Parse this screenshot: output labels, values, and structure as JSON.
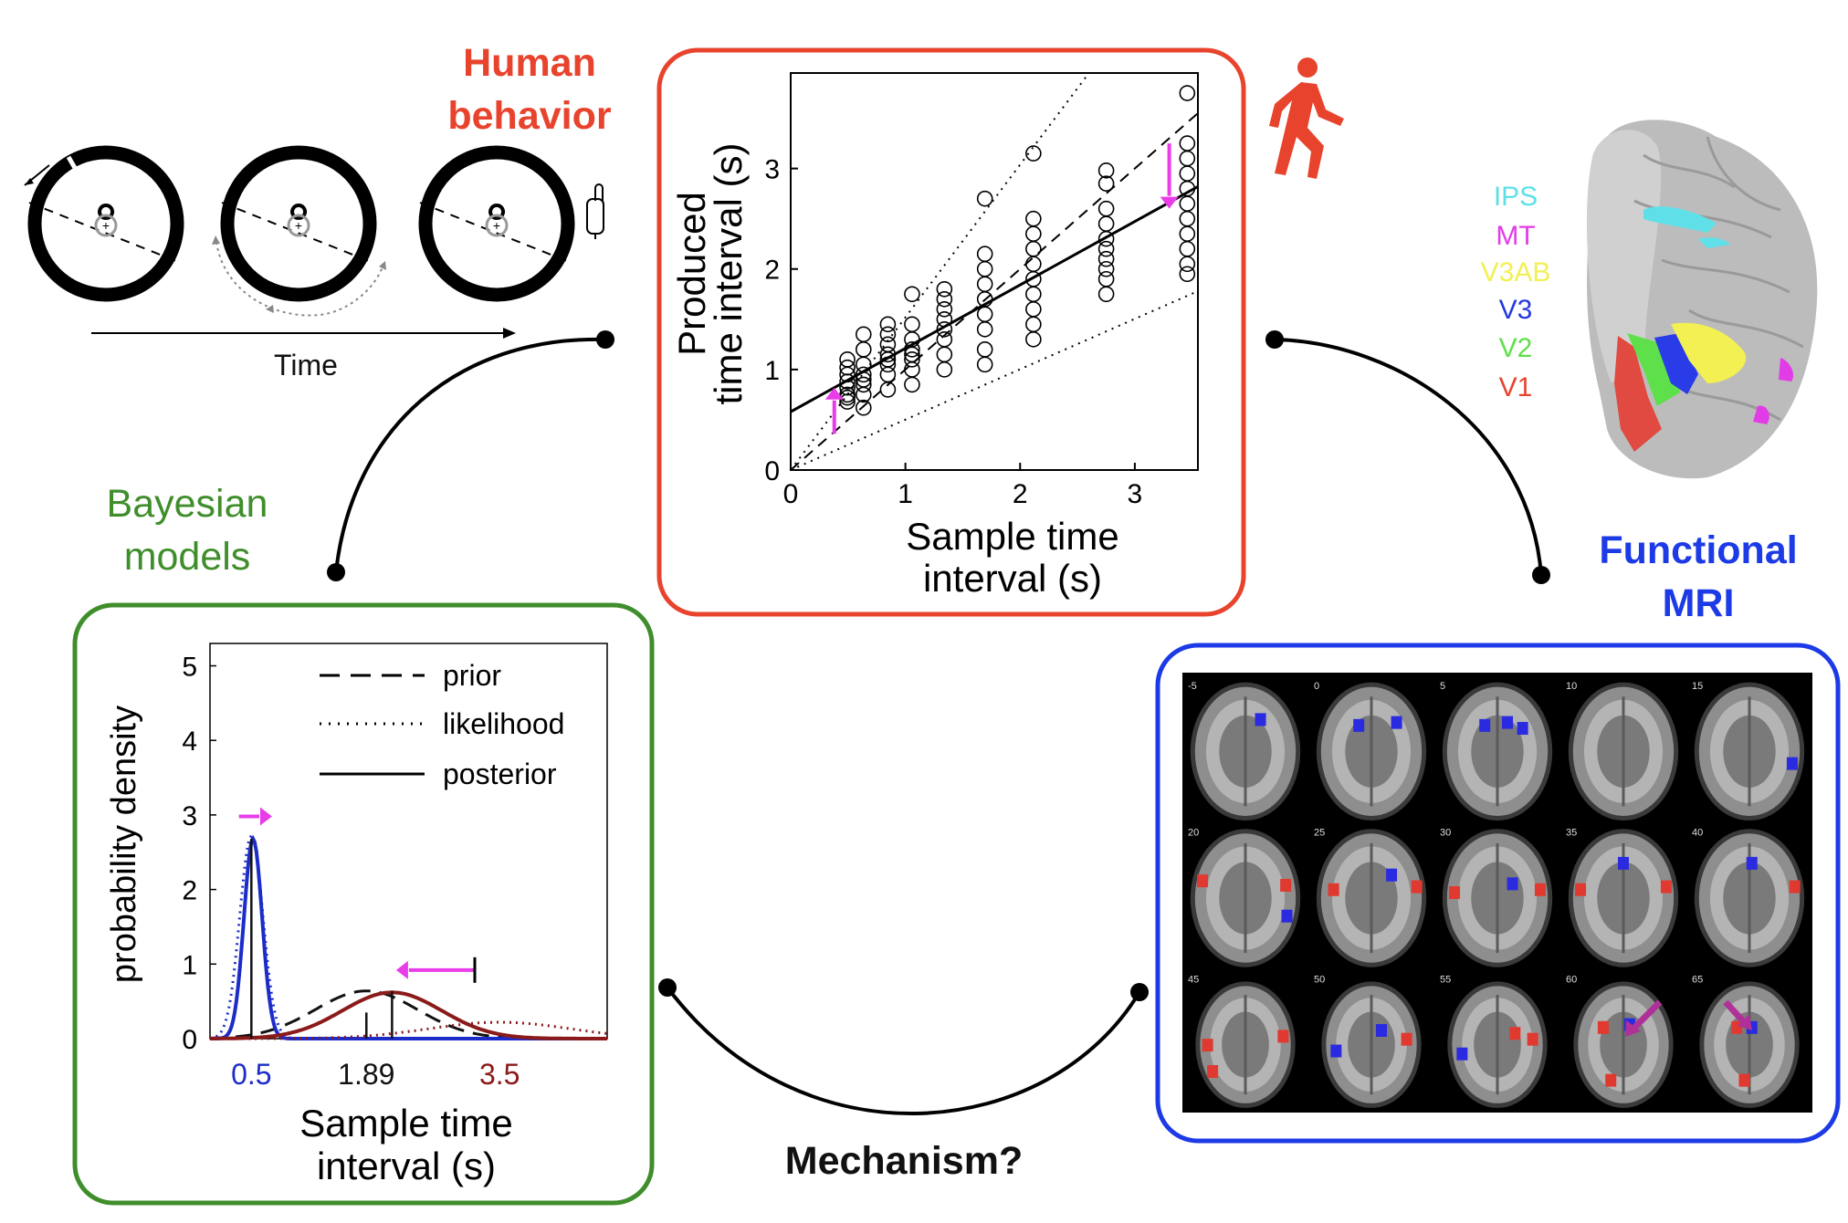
{
  "labels": {
    "human_behavior": [
      "Human",
      "behavior"
    ],
    "bayesian_models": [
      "Bayesian",
      "models"
    ],
    "functional_mri": [
      "Functional",
      "MRI"
    ],
    "mechanism": "Mechanism?",
    "time": "Time"
  },
  "roi_legend": [
    {
      "name": "IPS",
      "color": "#5fe0e8"
    },
    {
      "name": "MT",
      "color": "#e23ce6"
    },
    {
      "name": "V3AB",
      "color": "#f2f053"
    },
    {
      "name": "V3",
      "color": "#2438e0"
    },
    {
      "name": "V2",
      "color": "#5ee04a"
    },
    {
      "name": "V1",
      "color": "#e8432d"
    }
  ],
  "colors": {
    "behavior_border": "#e8432d",
    "bayes_border": "#3f8e2b",
    "fmri_border": "#1c3ae6",
    "arrow_magenta": "#e83ce8",
    "short_interval": "#1c2cc8",
    "long_interval": "#8b1a1a"
  },
  "fmri_slices": [
    "-5",
    "0",
    "5",
    "10",
    "15",
    "20",
    "25",
    "30",
    "35",
    "40",
    "45",
    "50",
    "55",
    "60",
    "65"
  ],
  "chart_data": [
    {
      "type": "scatter",
      "title": "",
      "xlabel": "Sample time interval  (s)",
      "ylabel": "Produced time interval (s)",
      "xlim": [
        0,
        3.55
      ],
      "ylim": [
        0,
        3.95
      ],
      "xticks": [
        0,
        1,
        2,
        3
      ],
      "yticks": [
        0,
        1,
        2,
        3
      ],
      "x": [
        0.494,
        0.635,
        0.847,
        1.058,
        1.34,
        1.693,
        2.116,
        2.751,
        3.457
      ],
      "points": [
        [
          0.494,
          0.75
        ],
        [
          0.494,
          0.82
        ],
        [
          0.494,
          0.88
        ],
        [
          0.494,
          0.95
        ],
        [
          0.494,
          1.02
        ],
        [
          0.494,
          1.1
        ],
        [
          0.494,
          0.68
        ],
        [
          0.494,
          0.72
        ],
        [
          0.635,
          0.62
        ],
        [
          0.635,
          0.75
        ],
        [
          0.635,
          0.85
        ],
        [
          0.635,
          0.95
        ],
        [
          0.635,
          1.05
        ],
        [
          0.635,
          1.2
        ],
        [
          0.635,
          1.35
        ],
        [
          0.635,
          0.9
        ],
        [
          0.847,
          0.8
        ],
        [
          0.847,
          0.95
        ],
        [
          0.847,
          1.05
        ],
        [
          0.847,
          1.15
        ],
        [
          0.847,
          1.25
        ],
        [
          0.847,
          1.35
        ],
        [
          0.847,
          1.45
        ],
        [
          0.847,
          1.1
        ],
        [
          1.058,
          0.85
        ],
        [
          1.058,
          1.0
        ],
        [
          1.058,
          1.1
        ],
        [
          1.058,
          1.2
        ],
        [
          1.058,
          1.3
        ],
        [
          1.058,
          1.45
        ],
        [
          1.058,
          1.75
        ],
        [
          1.058,
          1.15
        ],
        [
          1.34,
          1.0
        ],
        [
          1.34,
          1.15
        ],
        [
          1.34,
          1.3
        ],
        [
          1.34,
          1.4
        ],
        [
          1.34,
          1.5
        ],
        [
          1.34,
          1.6
        ],
        [
          1.34,
          1.7
        ],
        [
          1.34,
          1.8
        ],
        [
          1.693,
          1.05
        ],
        [
          1.693,
          1.2
        ],
        [
          1.693,
          1.4
        ],
        [
          1.693,
          1.55
        ],
        [
          1.693,
          1.7
        ],
        [
          1.693,
          1.85
        ],
        [
          1.693,
          2.0
        ],
        [
          1.693,
          2.15
        ],
        [
          1.693,
          2.7
        ],
        [
          2.116,
          1.3
        ],
        [
          2.116,
          1.45
        ],
        [
          2.116,
          1.6
        ],
        [
          2.116,
          1.75
        ],
        [
          2.116,
          1.9
        ],
        [
          2.116,
          2.05
        ],
        [
          2.116,
          2.2
        ],
        [
          2.116,
          2.35
        ],
        [
          2.116,
          2.5
        ],
        [
          2.116,
          3.15
        ],
        [
          2.751,
          1.75
        ],
        [
          2.751,
          1.9
        ],
        [
          2.751,
          2.0
        ],
        [
          2.751,
          2.1
        ],
        [
          2.751,
          2.2
        ],
        [
          2.751,
          2.3
        ],
        [
          2.751,
          2.45
        ],
        [
          2.751,
          2.6
        ],
        [
          2.751,
          2.85
        ],
        [
          2.751,
          2.98
        ],
        [
          3.457,
          1.95
        ],
        [
          3.457,
          2.05
        ],
        [
          3.457,
          2.2
        ],
        [
          3.457,
          2.35
        ],
        [
          3.457,
          2.5
        ],
        [
          3.457,
          2.65
        ],
        [
          3.457,
          2.8
        ],
        [
          3.457,
          2.95
        ],
        [
          3.457,
          3.1
        ],
        [
          3.457,
          3.25
        ],
        [
          3.457,
          3.75
        ]
      ],
      "lines": [
        {
          "style": "solid",
          "points": [
            [
              0,
              0.58
            ],
            [
              3.55,
              2.82
            ]
          ]
        },
        {
          "style": "dashed",
          "points": [
            [
              0,
              0
            ],
            [
              3.55,
              3.55
            ]
          ]
        },
        {
          "style": "dotted",
          "points": [
            [
              0,
              0
            ],
            [
              2.6,
              3.95
            ]
          ]
        },
        {
          "style": "dotted",
          "points": [
            [
              0,
              0
            ],
            [
              3.55,
              1.78
            ]
          ]
        }
      ],
      "arrows": [
        {
          "x": 0.38,
          "from": 0.36,
          "to": 0.82,
          "color": "#e83ce8"
        },
        {
          "x": 3.3,
          "from": 3.25,
          "to": 2.6,
          "color": "#e83ce8"
        }
      ]
    },
    {
      "type": "line",
      "title": "",
      "xlabel": "Sample time interval  (s)",
      "ylabel": "probability density",
      "xlim": [
        0,
        4.8
      ],
      "ylim": [
        0,
        5.3
      ],
      "yticks": [
        0,
        1,
        2,
        3,
        4,
        5
      ],
      "xtick_labels": [
        {
          "value": 0.5,
          "label": "0.5",
          "color": "#1c2cc8"
        },
        {
          "value": 1.89,
          "label": "1.89",
          "color": "#111111"
        },
        {
          "value": 3.5,
          "label": "3.5",
          "color": "#8b1a1a"
        }
      ],
      "legend": {
        "placement": "top-right",
        "entries": [
          {
            "name": "prior",
            "style": "dashed"
          },
          {
            "name": "likelihood",
            "style": "dotted"
          },
          {
            "name": "posterior",
            "style": "solid"
          }
        ]
      },
      "series": [
        {
          "name": "prior",
          "style": "dashed",
          "color": "#111111",
          "shape": "gaussian",
          "mean": 1.89,
          "sd": 0.62,
          "peak": 0.64
        },
        {
          "name": "likelihood",
          "style": "dotted",
          "color": "#1c2cc8",
          "shape": "gaussian",
          "mean": 0.5,
          "sd": 0.14,
          "peak": 2.72
        },
        {
          "name": "posterior",
          "style": "solid",
          "color": "#1c2cc8",
          "shape": "gaussian",
          "mean": 0.52,
          "sd": 0.11,
          "peak": 2.68
        },
        {
          "name": "likelihood",
          "style": "dotted",
          "color": "#8b1a1a",
          "shape": "gaussian",
          "mean": 3.5,
          "sd": 0.85,
          "peak": 0.22
        },
        {
          "name": "posterior",
          "style": "solid",
          "color": "#8b1a1a",
          "shape": "gaussian",
          "mean": 2.2,
          "sd": 0.6,
          "peak": 0.62
        }
      ],
      "vlines": [
        {
          "x": 0.5,
          "height": 2.68,
          "color": "#111111"
        },
        {
          "x": 1.89,
          "height": 0.35,
          "color": "#111111"
        },
        {
          "x": 2.2,
          "height": 0.64,
          "color": "#111111"
        }
      ],
      "arrows": [
        {
          "y": 2.98,
          "from": 0.35,
          "to": 0.75,
          "color": "#e83ce8"
        },
        {
          "y": 0.92,
          "from": 3.2,
          "to": 2.25,
          "color": "#e83ce8"
        }
      ]
    }
  ]
}
